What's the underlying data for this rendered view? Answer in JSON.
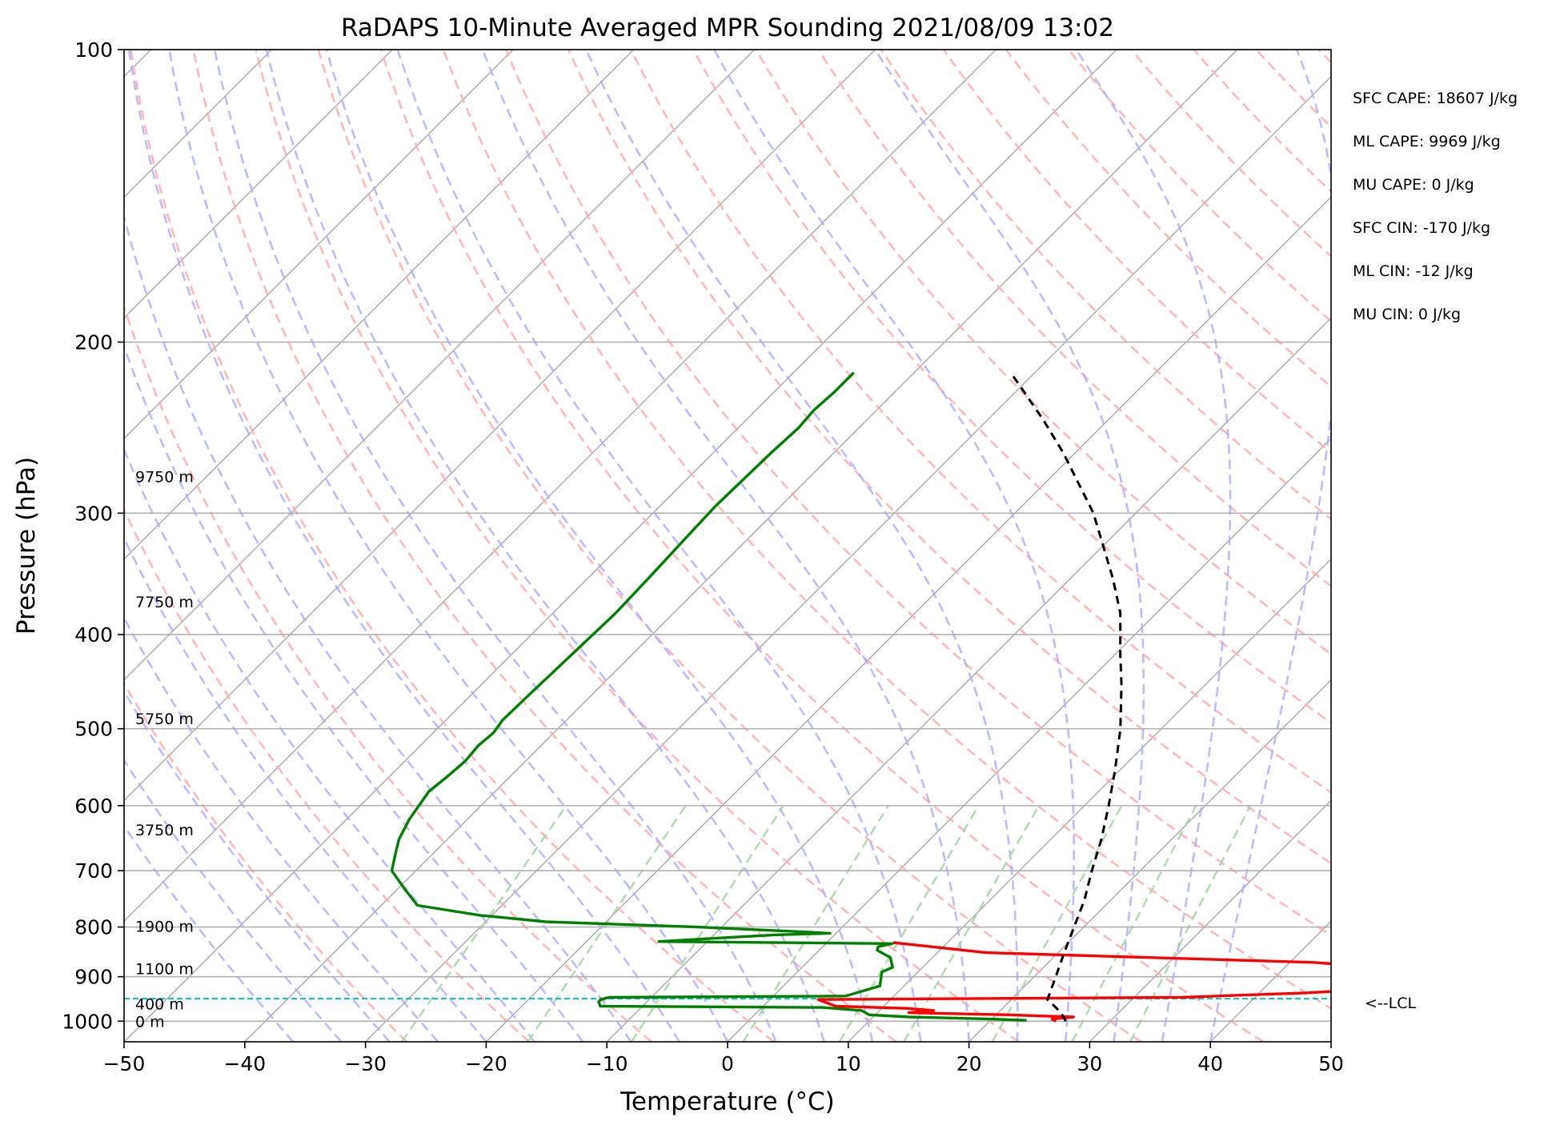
{
  "chart_data": {
    "type": "line",
    "title": "RaDAPS 10-Minute Averaged MPR Sounding 2021/08/09 13:02",
    "xlabel": "Temperature (°C)",
    "ylabel": "Pressure (hPa)",
    "xlim": [
      -50,
      50
    ],
    "ylim": [
      1050,
      100
    ],
    "y_scale": "log",
    "x_ticks": [
      "−50",
      "−40",
      "−30",
      "−20",
      "−10",
      "0",
      "10",
      "20",
      "30",
      "40",
      "50"
    ],
    "y_ticks": [
      "100",
      "200",
      "300",
      "400",
      "500",
      "600",
      "700",
      "800",
      "900",
      "1000"
    ],
    "grid": true,
    "background_lines": {
      "isotherms": {
        "color": "#aaaaaa",
        "style": "solid"
      },
      "dry_adiabats": {
        "color": "#ffaaaa",
        "style": "dashed"
      },
      "moist_adiabats": {
        "color": "#aaaaff",
        "style": "dashed"
      },
      "mixing_ratio_lines": {
        "color": "#a8d8a8",
        "style": "dashed",
        "top_pressure": 600
      }
    },
    "series": [
      {
        "color": "#ff0000",
        "points": [
          {
            "p": 1000,
            "t": 25.5
          },
          {
            "p": 995,
            "t": 25.0
          },
          {
            "p": 990,
            "t": 26.6
          },
          {
            "p": 985,
            "t": 21.0
          },
          {
            "p": 980,
            "t": 12.6
          },
          {
            "p": 975,
            "t": 14.5
          },
          {
            "p": 970,
            "t": 12.0
          },
          {
            "p": 965,
            "t": 6.0
          },
          {
            "p": 950,
            "t": 4.0
          },
          {
            "p": 945,
            "t": 34.0
          },
          {
            "p": 935,
            "t": 44.0
          },
          {
            "p": 925,
            "t": 50.0
          },
          {
            "p": 900,
            "t": 50.0
          },
          {
            "p": 890,
            "t": 46.5
          },
          {
            "p": 885,
            "t": 45.2
          },
          {
            "p": 875,
            "t": 45.0
          },
          {
            "p": 870,
            "t": 42.0
          },
          {
            "p": 850,
            "t": 14.0
          },
          {
            "p": 830,
            "t": 5.5
          }
        ]
      },
      {
        "color": "#008000",
        "points": [
          {
            "p": 998,
            "t": 23.0
          },
          {
            "p": 995,
            "t": 20.0
          },
          {
            "p": 990,
            "t": 13.0
          },
          {
            "p": 985,
            "t": 9.5
          },
          {
            "p": 975,
            "t": 8.5
          },
          {
            "p": 968,
            "t": 5.0
          },
          {
            "p": 965,
            "t": -13.5
          },
          {
            "p": 955,
            "t": -14.0
          },
          {
            "p": 950,
            "t": -14.0
          },
          {
            "p": 945,
            "t": -13.5
          },
          {
            "p": 942,
            "t": 6.0
          },
          {
            "p": 920,
            "t": 8.0
          },
          {
            "p": 905,
            "t": 7.5
          },
          {
            "p": 890,
            "t": 7.0
          },
          {
            "p": 880,
            "t": 7.5
          },
          {
            "p": 860,
            "t": 6.5
          },
          {
            "p": 845,
            "t": 4.8
          },
          {
            "p": 838,
            "t": 4.6
          },
          {
            "p": 832,
            "t": 5.5
          },
          {
            "p": 828,
            "t": -14.0
          },
          {
            "p": 822,
            "t": -10.0
          },
          {
            "p": 815,
            "t": -5.0
          },
          {
            "p": 812,
            "t": -0.5
          },
          {
            "p": 808,
            "t": -4.0
          },
          {
            "p": 800,
            "t": -12.0
          },
          {
            "p": 790,
            "t": -25.0
          },
          {
            "p": 778,
            "t": -31.0
          },
          {
            "p": 760,
            "t": -37.0
          },
          {
            "p": 730,
            "t": -39.5
          },
          {
            "p": 700,
            "t": -42.0
          },
          {
            "p": 675,
            "t": -43.0
          },
          {
            "p": 650,
            "t": -44.0
          },
          {
            "p": 620,
            "t": -44.8
          },
          {
            "p": 580,
            "t": -45.5
          },
          {
            "p": 560,
            "t": -45.2
          },
          {
            "p": 540,
            "t": -45.0
          },
          {
            "p": 520,
            "t": -45.2
          },
          {
            "p": 505,
            "t": -45.0
          },
          {
            "p": 490,
            "t": -45.3
          },
          {
            "p": 460,
            "t": -45.2
          },
          {
            "p": 420,
            "t": -45.0
          },
          {
            "p": 380,
            "t": -44.8
          },
          {
            "p": 345,
            "t": -45.0
          },
          {
            "p": 320,
            "t": -45.2
          },
          {
            "p": 295,
            "t": -45.4
          },
          {
            "p": 260,
            "t": -45.2
          },
          {
            "p": 245,
            "t": -45.0
          },
          {
            "p": 235,
            "t": -45.2
          },
          {
            "p": 225,
            "t": -45.0
          },
          {
            "p": 215,
            "t": -45.0
          }
        ]
      },
      {
        "color": "#000000",
        "style": "dashed",
        "points": [
          {
            "p": 1000,
            "t": 26.3
          },
          {
            "p": 990,
            "t": 25.8
          },
          {
            "p": 970,
            "t": 24.5
          },
          {
            "p": 950,
            "t": 23.0
          },
          {
            "p": 900,
            "t": 21.8
          },
          {
            "p": 850,
            "t": 20.5
          },
          {
            "p": 800,
            "t": 19.2
          },
          {
            "p": 750,
            "t": 17.8
          },
          {
            "p": 700,
            "t": 16.0
          },
          {
            "p": 650,
            "t": 14.2
          },
          {
            "p": 600,
            "t": 12.0
          },
          {
            "p": 550,
            "t": 9.5
          },
          {
            "p": 500,
            "t": 6.6
          },
          {
            "p": 450,
            "t": 3.0
          },
          {
            "p": 420,
            "t": 0.5
          },
          {
            "p": 380,
            "t": -3.0
          },
          {
            "p": 350,
            "t": -6.5
          },
          {
            "p": 300,
            "t": -13.5
          },
          {
            "p": 260,
            "t": -21.0
          },
          {
            "p": 240,
            "t": -25.5
          },
          {
            "p": 215,
            "t": -32.0
          }
        ]
      }
    ],
    "lcl": {
      "pressure": 948,
      "color": "#00c0c0",
      "label": "<--LCL"
    },
    "height_labels": [
      {
        "text": "9750 m",
        "p": 275
      },
      {
        "text": "7750 m",
        "p": 370
      },
      {
        "text": "5750 m",
        "p": 488
      },
      {
        "text": "3750 m",
        "p": 635
      },
      {
        "text": "1900 m",
        "p": 798
      },
      {
        "text": "1100 m",
        "p": 883
      },
      {
        "text": "400 m",
        "p": 960
      },
      {
        "text": "0 m",
        "p": 1000
      }
    ],
    "indices": [
      "SFC CAPE: 18607 J/kg",
      "ML CAPE: 9969 J/kg",
      "MU CAPE: 0 J/kg",
      "SFC CIN: -170 J/kg",
      "ML CIN: -12 J/kg",
      "MU CIN: 0 J/kg"
    ]
  }
}
